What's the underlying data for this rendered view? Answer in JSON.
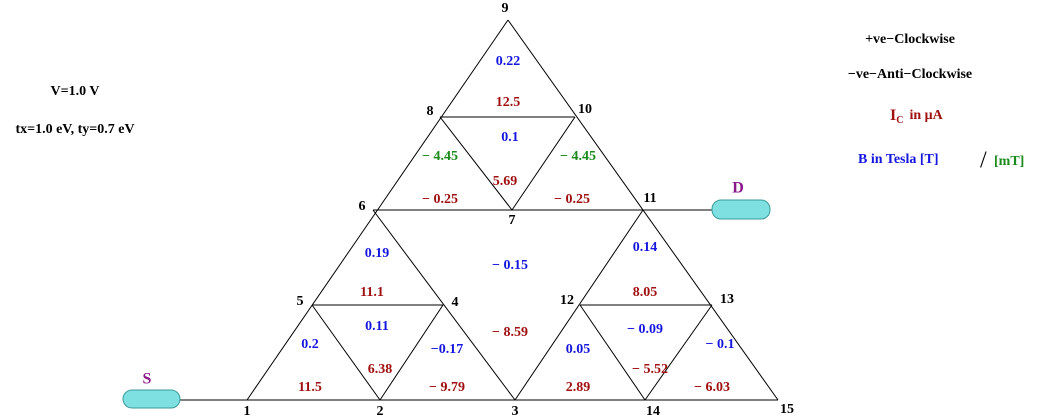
{
  "nodes": [
    "1",
    "2",
    "3",
    "4",
    "5",
    "6",
    "7",
    "8",
    "9",
    "10",
    "11",
    "12",
    "13",
    "14",
    "15"
  ],
  "source": "S",
  "drain": "D",
  "conditions": [
    "V=1.0 V",
    "tx=1.0 eV, ty=0.7 eV"
  ],
  "legend": {
    "clockwise": "+ve−Clockwise",
    "anticlockwise": "−ve−Anti−Clockwise",
    "current": {
      "symbol": "I",
      "subscript": "C",
      "unit": "in μA"
    },
    "field": "B in Tesla [T]",
    "separator": "/",
    "field_alt": "[mT]"
  },
  "annotations": [
    "0.22",
    "12.5",
    "0.1",
    "− 4.45",
    "− 4.45",
    "5.69",
    "− 0.25",
    "− 0.25",
    "0.19",
    "− 0.15",
    "0.14",
    "11.1",
    "8.05",
    "0.11",
    "− 0.09",
    "− 8.59",
    "0.2",
    "−0.17",
    "0.05",
    "− 0.1",
    "6.38",
    "− 5.52",
    "11.5",
    "− 9.79",
    "2.89",
    "− 6.03"
  ]
}
